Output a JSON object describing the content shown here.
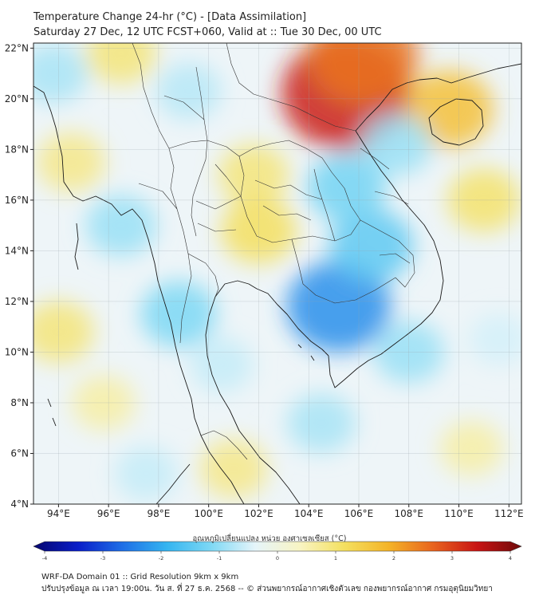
{
  "header": {
    "title_line1": "Temperature Change 24-hr (°C) - [Data Assimilation]",
    "title_line2": "Saturday 27 Dec, 12 UTC FCST+060, Valid at :: Tue 30 Dec, 00 UTC"
  },
  "map": {
    "lon_range": [
      93.0,
      112.5
    ],
    "lat_range": [
      4.0,
      22.2
    ],
    "lon_ticks": [
      {
        "value": 94,
        "label": "94°E"
      },
      {
        "value": 96,
        "label": "96°E"
      },
      {
        "value": 98,
        "label": "98°E"
      },
      {
        "value": 100,
        "label": "100°E"
      },
      {
        "value": 102,
        "label": "102°E"
      },
      {
        "value": 104,
        "label": "104°E"
      },
      {
        "value": 106,
        "label": "106°E"
      },
      {
        "value": 108,
        "label": "108°E"
      },
      {
        "value": 110,
        "label": "110°E"
      },
      {
        "value": 112,
        "label": "112°E"
      }
    ],
    "lat_ticks": [
      {
        "value": 22,
        "label": "22°N"
      },
      {
        "value": 20,
        "label": "20°N"
      },
      {
        "value": 18,
        "label": "18°N"
      },
      {
        "value": 16,
        "label": "16°N"
      },
      {
        "value": 14,
        "label": "14°N"
      },
      {
        "value": 12,
        "label": "12°N"
      },
      {
        "value": 10,
        "label": "10°N"
      },
      {
        "value": 8,
        "label": "8°N"
      },
      {
        "value": 6,
        "label": "6°N"
      },
      {
        "value": 4,
        "label": "4°N"
      }
    ],
    "background_color": "#eef5f8"
  },
  "colorbar": {
    "label": "อุณหภูมิเปลี่ยนแปลง หน่วย องศาเซลเซียส (°C)",
    "min": -4,
    "max": 4,
    "ticks": [
      {
        "value": -4,
        "label": "-4"
      },
      {
        "value": -3,
        "label": "-3"
      },
      {
        "value": -2,
        "label": "-2"
      },
      {
        "value": -1,
        "label": "-1"
      },
      {
        "value": 0,
        "label": "0"
      },
      {
        "value": 1,
        "label": "1"
      },
      {
        "value": 2,
        "label": "2"
      },
      {
        "value": 3,
        "label": "3"
      },
      {
        "value": 4,
        "label": "4"
      }
    ],
    "stops": [
      "#06066e",
      "#0a1ec8",
      "#1e6ee6",
      "#34b4f0",
      "#7ed8f4",
      "#e6f5fa",
      "#f8f4c4",
      "#f4e060",
      "#f4b428",
      "#e8641e",
      "#c81414",
      "#6e0a0a"
    ]
  },
  "footer": {
    "line1": "WRF-DA Domain 01 :: Grid Resolution 9km x 9km",
    "line2": "ปรับปรุงข้อมูล ณ เวลา 19:00น. วัน ส. ที่ 27 ธ.ค. 2568 -- © ส่วนพยากรณ์อากาศเชิงตัวเลข กองพยากรณ์อากาศ กรมอุตุนิยมวิทยา"
  },
  "anomalies": [
    {
      "lon": 105.5,
      "lat": 20.2,
      "value": 3.2,
      "label": "warm-north-vietnam"
    },
    {
      "lon": 106.2,
      "lat": 21.7,
      "value": 2.4,
      "label": "warm-south-china"
    },
    {
      "lon": 109.6,
      "lat": 19.6,
      "value": 1.6,
      "label": "warm-hainan"
    },
    {
      "lon": 101.8,
      "lat": 17.0,
      "value": 0.9,
      "label": "warm-laos-north"
    },
    {
      "lon": 102.0,
      "lat": 14.8,
      "value": 1.1,
      "label": "warm-northeast-thailand"
    },
    {
      "lon": 111.0,
      "lat": 16.0,
      "value": 1.0,
      "label": "warm-south-china-sea"
    },
    {
      "lon": 96.5,
      "lat": 21.8,
      "value": 0.9,
      "label": "warm-myanmar-north"
    },
    {
      "lon": 94.5,
      "lat": 17.5,
      "value": 0.8,
      "label": "warm-bay-of-bengal"
    },
    {
      "lon": 94.0,
      "lat": 10.8,
      "value": 0.9,
      "label": "warm-andaman-west"
    },
    {
      "lon": 101.0,
      "lat": 5.4,
      "value": 0.8,
      "label": "warm-malay"
    },
    {
      "lon": 95.8,
      "lat": 8.0,
      "value": 0.6,
      "label": "warm-andaman-south"
    },
    {
      "lon": 110.5,
      "lat": 6.2,
      "value": 0.6,
      "label": "warm-borneo-sea"
    },
    {
      "lon": 105.2,
      "lat": 11.8,
      "value": -2.2,
      "label": "cool-cambodia"
    },
    {
      "lon": 106.5,
      "lat": 14.2,
      "value": -1.4,
      "label": "cool-central-highlands"
    },
    {
      "lon": 105.5,
      "lat": 16.5,
      "value": -1.2,
      "label": "cool-laos-south"
    },
    {
      "lon": 98.8,
      "lat": 11.5,
      "value": -1.1,
      "label": "cool-kra-isthmus"
    },
    {
      "lon": 96.5,
      "lat": 15.0,
      "value": -0.9,
      "label": "cool-andaman-north"
    },
    {
      "lon": 93.8,
      "lat": 21.0,
      "value": -0.8,
      "label": "cool-bangladesh"
    },
    {
      "lon": 99.2,
      "lat": 20.3,
      "value": -0.7,
      "label": "cool-shan"
    },
    {
      "lon": 104.5,
      "lat": 7.2,
      "value": -0.8,
      "label": "cool-gulf-south"
    },
    {
      "lon": 108.0,
      "lat": 10.0,
      "value": -0.9,
      "label": "cool-south-sea"
    },
    {
      "lon": 100.5,
      "lat": 9.5,
      "value": -0.6,
      "label": "cool-gulf-thailand"
    },
    {
      "lon": 97.5,
      "lat": 5.2,
      "value": -0.6,
      "label": "cool-malacca"
    },
    {
      "lon": 107.5,
      "lat": 18.2,
      "value": -0.9,
      "label": "cool-gulf-tonkin"
    },
    {
      "lon": 111.6,
      "lat": 10.5,
      "value": -0.5,
      "label": "cool-east-sea"
    }
  ]
}
